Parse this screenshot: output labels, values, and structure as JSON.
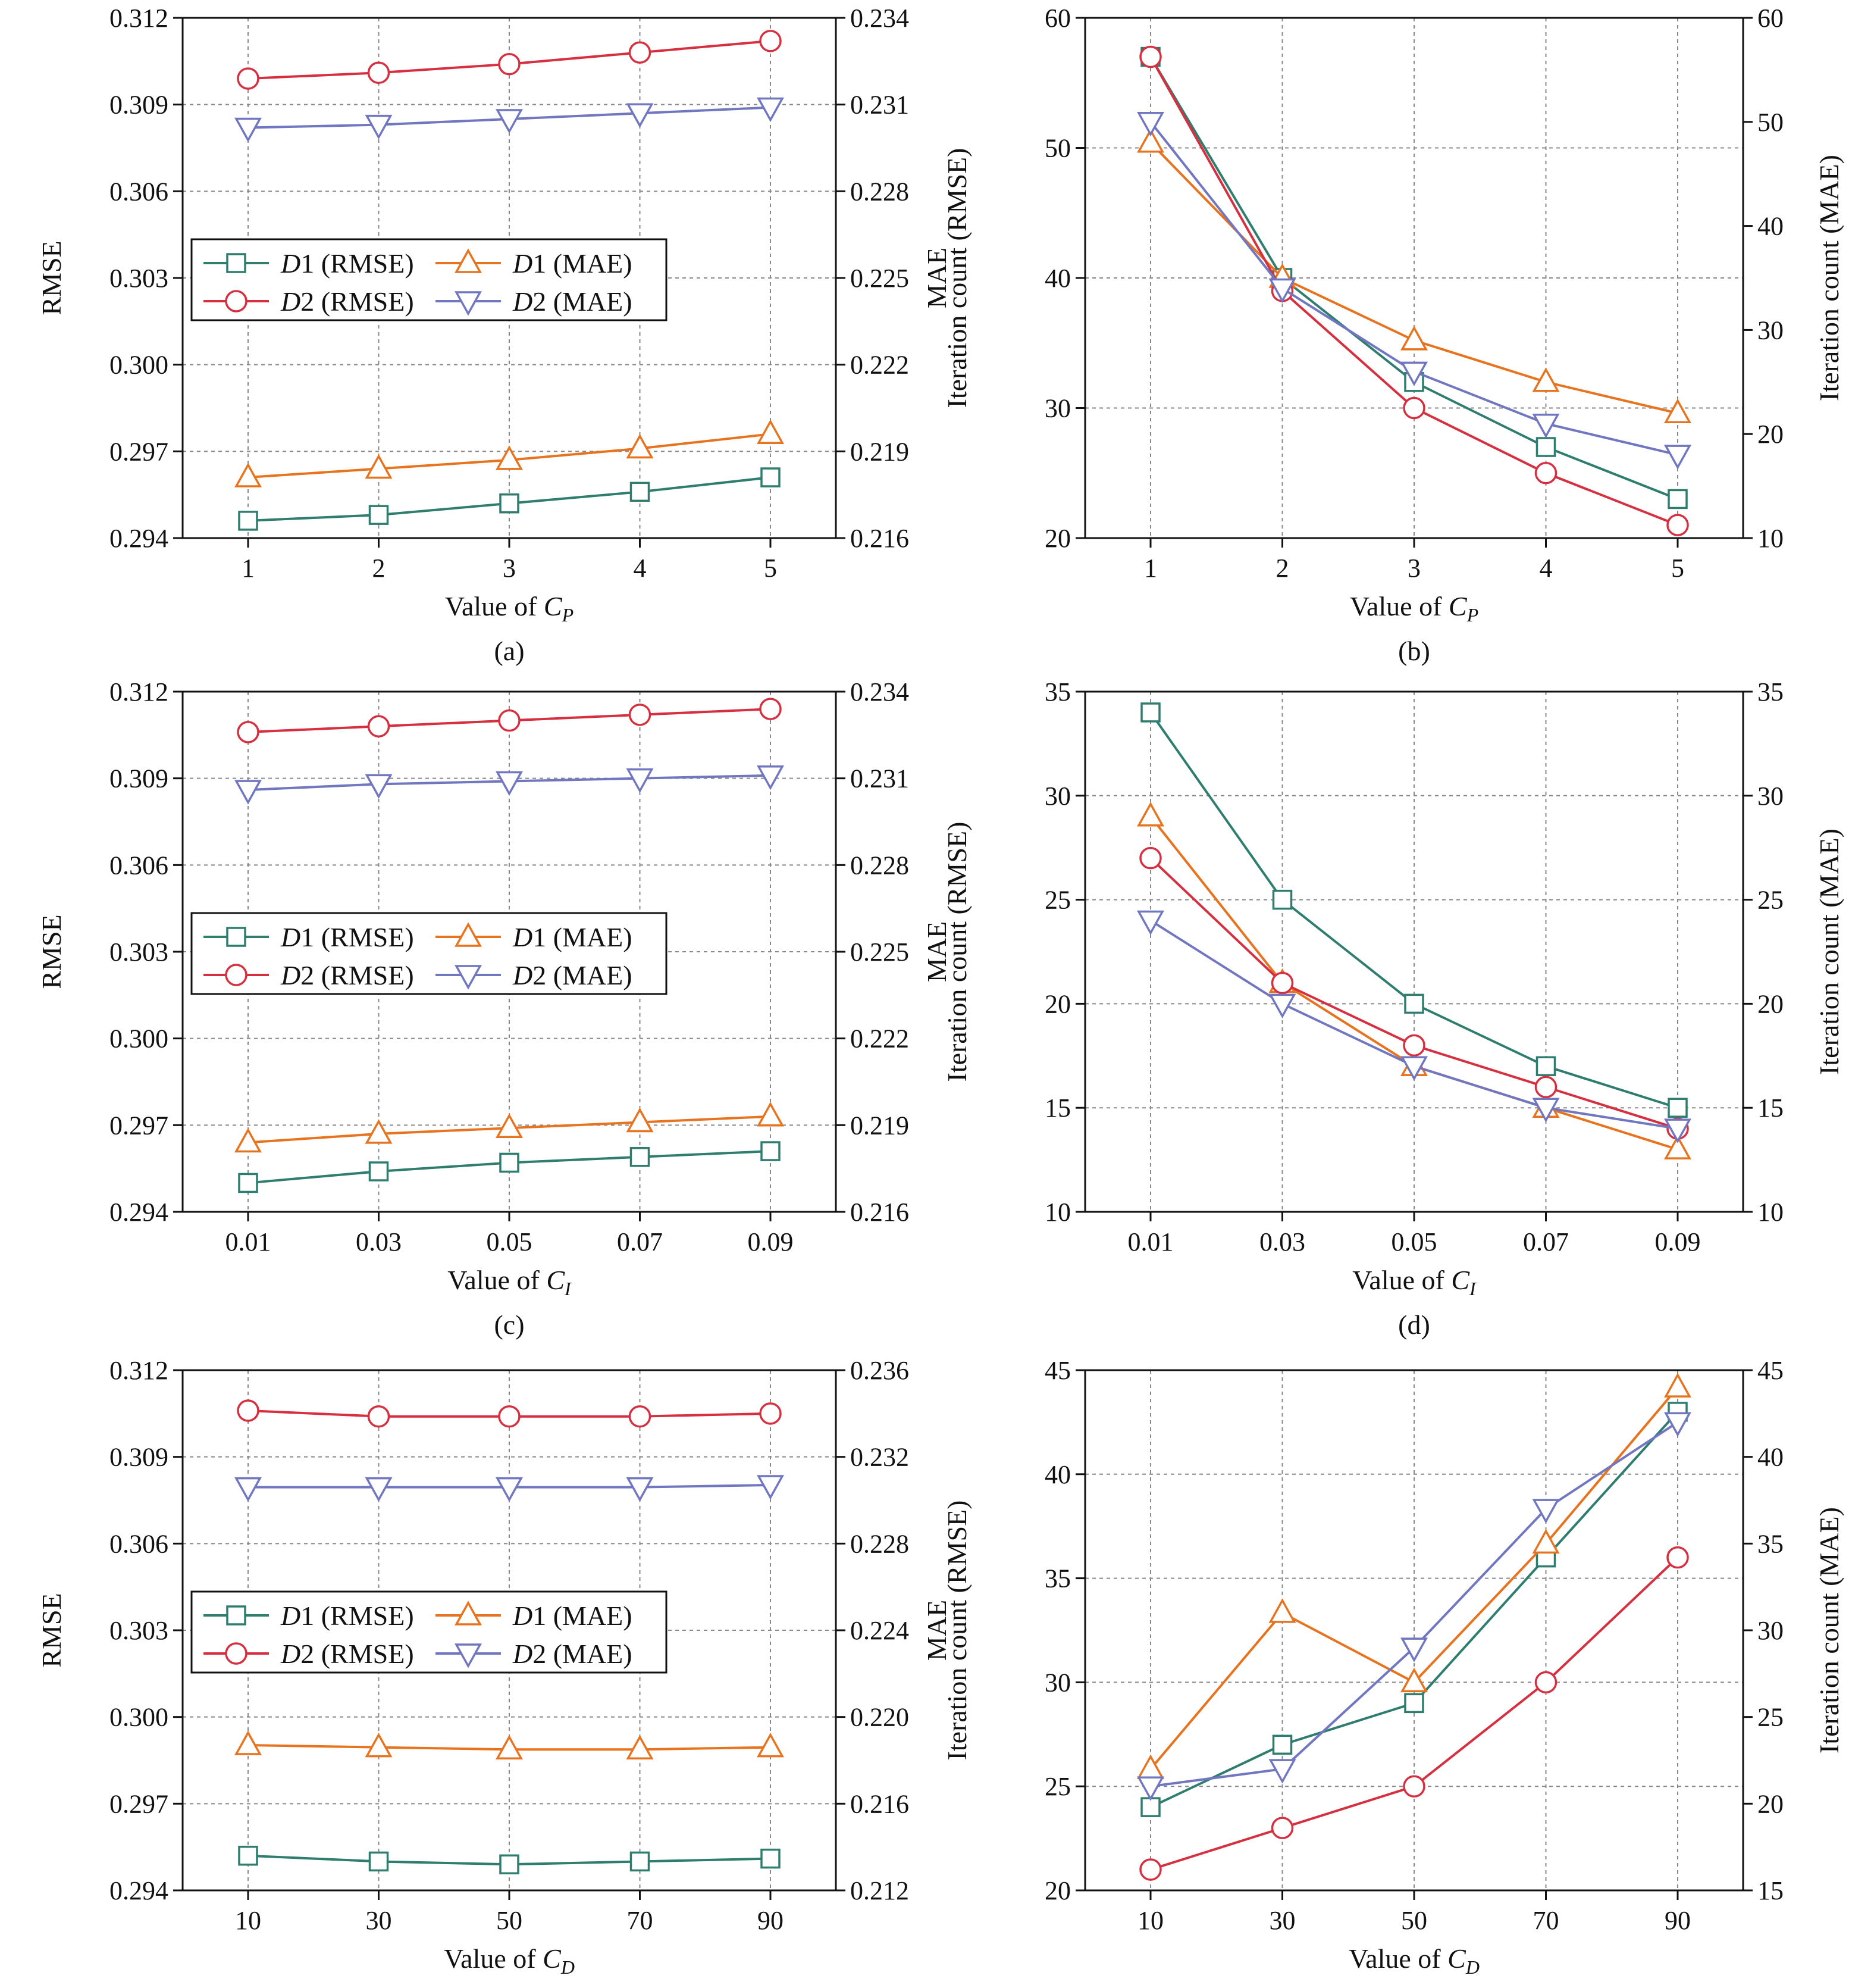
{
  "colors": {
    "D1 (RMSE)": "#2e7d6e",
    "D1 (MAE)": "#e8731e",
    "D2 (RMSE)": "#d62f3f",
    "D2 (MAE)": "#7176c0"
  },
  "markers": {
    "D1 (RMSE)": "square",
    "D1 (MAE)": "triangle-up",
    "D2 (RMSE)": "circle",
    "D2 (MAE)": "triangle-down"
  },
  "chart_data": [
    {
      "id": "a",
      "type": "line",
      "panel_label": "(a)",
      "xlabel": "Value of ",
      "xlabel_sym": "C",
      "xlabel_sub": "P",
      "ylabel_left": "RMSE",
      "ylabel_right": "MAE",
      "x": [
        1,
        2,
        3,
        4,
        5
      ],
      "x_ticks": [
        "1",
        "2",
        "3",
        "4",
        "5"
      ],
      "ylim_left": [
        0.294,
        0.312
      ],
      "yticks_left": [
        "0.294",
        "0.297",
        "0.300",
        "0.303",
        "0.306",
        "0.309",
        "0.312"
      ],
      "ylim_right": [
        0.216,
        0.234
      ],
      "yticks_right": [
        "0.216",
        "0.219",
        "0.222",
        "0.225",
        "0.228",
        "0.231",
        "0.234"
      ],
      "grid": true,
      "legend": {
        "position": "middle-left",
        "entries": [
          {
            "sym": "D",
            "num": "1",
            "rest": " (RMSE)",
            "series": "D1 (RMSE)"
          },
          {
            "sym": "D",
            "num": "1",
            "rest": " (MAE)",
            "series": "D1 (MAE)"
          },
          {
            "sym": "D",
            "num": "2",
            "rest": " (RMSE)",
            "series": "D2 (RMSE)"
          },
          {
            "sym": "D",
            "num": "2",
            "rest": " (MAE)",
            "series": "D2 (MAE)"
          }
        ]
      },
      "series": [
        {
          "name": "D1 (RMSE)",
          "axis": "left",
          "values": [
            0.2946,
            0.2948,
            0.2952,
            0.2956,
            0.2961
          ]
        },
        {
          "name": "D1 (MAE)",
          "axis": "right",
          "values": [
            0.2181,
            0.2184,
            0.2187,
            0.2191,
            0.2196
          ]
        },
        {
          "name": "D2 (RMSE)",
          "axis": "left",
          "values": [
            0.3099,
            0.3101,
            0.3104,
            0.3108,
            0.3112
          ]
        },
        {
          "name": "D2 (MAE)",
          "axis": "right",
          "values": [
            0.2302,
            0.2303,
            0.2305,
            0.2307,
            0.2309
          ]
        }
      ]
    },
    {
      "id": "b",
      "type": "line",
      "panel_label": "(b)",
      "xlabel": "Value of ",
      "xlabel_sym": "C",
      "xlabel_sub": "P",
      "ylabel_left": "Iteration count (RMSE)",
      "ylabel_right": "Iteration count (MAE)",
      "x": [
        1,
        2,
        3,
        4,
        5
      ],
      "x_ticks": [
        "1",
        "2",
        "3",
        "4",
        "5"
      ],
      "ylim_left": [
        20,
        60
      ],
      "yticks_left": [
        "20",
        "30",
        "40",
        "50",
        "60"
      ],
      "ylim_right": [
        10,
        60
      ],
      "yticks_right": [
        "10",
        "20",
        "30",
        "40",
        "50",
        "60"
      ],
      "grid": true,
      "series": [
        {
          "name": "D1 (RMSE)",
          "axis": "left",
          "values": [
            57,
            40,
            32,
            27,
            23
          ]
        },
        {
          "name": "D1 (MAE)",
          "axis": "right",
          "values": [
            48,
            35,
            29,
            25,
            22
          ]
        },
        {
          "name": "D2 (RMSE)",
          "axis": "left",
          "values": [
            57,
            39,
            30,
            25,
            21
          ]
        },
        {
          "name": "D2 (MAE)",
          "axis": "right",
          "values": [
            50,
            34,
            26,
            21,
            18
          ]
        }
      ]
    },
    {
      "id": "c",
      "type": "line",
      "panel_label": "(c)",
      "xlabel": "Value of ",
      "xlabel_sym": "C",
      "xlabel_sub": "I",
      "ylabel_left": "RMSE",
      "ylabel_right": "MAE",
      "x": [
        0.01,
        0.03,
        0.05,
        0.07,
        0.09
      ],
      "x_ticks": [
        "0.01",
        "0.03",
        "0.05",
        "0.07",
        "0.09"
      ],
      "ylim_left": [
        0.294,
        0.312
      ],
      "yticks_left": [
        "0.294",
        "0.297",
        "0.300",
        "0.303",
        "0.306",
        "0.309",
        "0.312"
      ],
      "ylim_right": [
        0.216,
        0.234
      ],
      "yticks_right": [
        "0.216",
        "0.219",
        "0.222",
        "0.225",
        "0.228",
        "0.231",
        "0.234"
      ],
      "grid": true,
      "legend": {
        "position": "middle-left",
        "entries": [
          {
            "sym": "D",
            "num": "1",
            "rest": " (RMSE)",
            "series": "D1 (RMSE)"
          },
          {
            "sym": "D",
            "num": "1",
            "rest": " (MAE)",
            "series": "D1 (MAE)"
          },
          {
            "sym": "D",
            "num": "2",
            "rest": " (RMSE)",
            "series": "D2 (RMSE)"
          },
          {
            "sym": "D",
            "num": "2",
            "rest": " (MAE)",
            "series": "D2 (MAE)"
          }
        ]
      },
      "series": [
        {
          "name": "D1 (RMSE)",
          "axis": "left",
          "values": [
            0.295,
            0.2954,
            0.2957,
            0.2959,
            0.2961
          ]
        },
        {
          "name": "D1 (MAE)",
          "axis": "right",
          "values": [
            0.2184,
            0.2187,
            0.2189,
            0.2191,
            0.2193
          ]
        },
        {
          "name": "D2 (RMSE)",
          "axis": "left",
          "values": [
            0.3106,
            0.3108,
            0.311,
            0.3112,
            0.3114
          ]
        },
        {
          "name": "D2 (MAE)",
          "axis": "right",
          "values": [
            0.2306,
            0.2308,
            0.2309,
            0.231,
            0.2311
          ]
        }
      ]
    },
    {
      "id": "d",
      "type": "line",
      "panel_label": "(d)",
      "xlabel": "Value of ",
      "xlabel_sym": "C",
      "xlabel_sub": "I",
      "ylabel_left": "Iteration count (RMSE)",
      "ylabel_right": "Iteration count (MAE)",
      "x": [
        0.01,
        0.03,
        0.05,
        0.07,
        0.09
      ],
      "x_ticks": [
        "0.01",
        "0.03",
        "0.05",
        "0.07",
        "0.09"
      ],
      "ylim_left": [
        10,
        35
      ],
      "yticks_left": [
        "10",
        "15",
        "20",
        "25",
        "30",
        "35"
      ],
      "ylim_right": [
        10,
        35
      ],
      "yticks_right": [
        "10",
        "15",
        "20",
        "25",
        "30",
        "35"
      ],
      "grid": true,
      "series": [
        {
          "name": "D1 (RMSE)",
          "axis": "left",
          "values": [
            34,
            25,
            20,
            17,
            15
          ]
        },
        {
          "name": "D1 (MAE)",
          "axis": "right",
          "values": [
            29,
            21,
            17,
            15,
            13
          ]
        },
        {
          "name": "D2 (RMSE)",
          "axis": "left",
          "values": [
            27,
            21,
            18,
            16,
            14
          ]
        },
        {
          "name": "D2 (MAE)",
          "axis": "right",
          "values": [
            24,
            20,
            17,
            15,
            14
          ]
        }
      ]
    },
    {
      "id": "e",
      "type": "line",
      "panel_label": "(e)",
      "xlabel": "Value of ",
      "xlabel_sym": "C",
      "xlabel_sub": "D",
      "ylabel_left": "RMSE",
      "ylabel_right": "MAE",
      "x": [
        10,
        30,
        50,
        70,
        90
      ],
      "x_ticks": [
        "10",
        "30",
        "50",
        "70",
        "90"
      ],
      "ylim_left": [
        0.294,
        0.312
      ],
      "yticks_left": [
        "0.294",
        "0.297",
        "0.300",
        "0.303",
        "0.306",
        "0.309",
        "0.312"
      ],
      "ylim_right": [
        0.212,
        0.236
      ],
      "yticks_right": [
        "0.212",
        "0.216",
        "0.220",
        "0.224",
        "0.228",
        "0.232",
        "0.236"
      ],
      "grid": true,
      "legend": {
        "position": "middle-left",
        "entries": [
          {
            "sym": "D",
            "num": "1",
            "rest": " (RMSE)",
            "series": "D1 (RMSE)"
          },
          {
            "sym": "D",
            "num": "1",
            "rest": " (MAE)",
            "series": "D1 (MAE)"
          },
          {
            "sym": "D",
            "num": "2",
            "rest": " (RMSE)",
            "series": "D2 (RMSE)"
          },
          {
            "sym": "D",
            "num": "2",
            "rest": " (MAE)",
            "series": "D2 (MAE)"
          }
        ]
      },
      "series": [
        {
          "name": "D1 (RMSE)",
          "axis": "left",
          "values": [
            0.2952,
            0.295,
            0.2949,
            0.295,
            0.2951
          ]
        },
        {
          "name": "D1 (MAE)",
          "axis": "right",
          "values": [
            0.2187,
            0.2186,
            0.2185,
            0.2185,
            0.2186
          ]
        },
        {
          "name": "D2 (RMSE)",
          "axis": "left",
          "values": [
            0.3106,
            0.3104,
            0.3104,
            0.3104,
            0.3105
          ]
        },
        {
          "name": "D2 (MAE)",
          "axis": "right",
          "values": [
            0.2306,
            0.2306,
            0.2306,
            0.2306,
            0.2307
          ]
        }
      ]
    },
    {
      "id": "f",
      "type": "line",
      "panel_label": "(f)",
      "xlabel": "Value of ",
      "xlabel_sym": "C",
      "xlabel_sub": "D",
      "ylabel_left": "Iteration count (RMSE)",
      "ylabel_right": "Iteration count (MAE)",
      "x": [
        10,
        30,
        50,
        70,
        90
      ],
      "x_ticks": [
        "10",
        "30",
        "50",
        "70",
        "90"
      ],
      "ylim_left": [
        20,
        45
      ],
      "yticks_left": [
        "20",
        "25",
        "30",
        "35",
        "40",
        "45"
      ],
      "ylim_right": [
        15,
        45
      ],
      "yticks_right": [
        "15",
        "20",
        "25",
        "30",
        "35",
        "40",
        "45"
      ],
      "grid": true,
      "series": [
        {
          "name": "D1 (RMSE)",
          "axis": "left",
          "values": [
            24,
            27,
            29,
            36,
            43
          ]
        },
        {
          "name": "D1 (MAE)",
          "axis": "right",
          "values": [
            22,
            31,
            27,
            35,
            44
          ]
        },
        {
          "name": "D2 (RMSE)",
          "axis": "left",
          "values": [
            21,
            23,
            25,
            30,
            36
          ]
        },
        {
          "name": "D2 (MAE)",
          "axis": "right",
          "values": [
            21,
            22,
            29,
            37,
            42
          ]
        }
      ]
    }
  ]
}
